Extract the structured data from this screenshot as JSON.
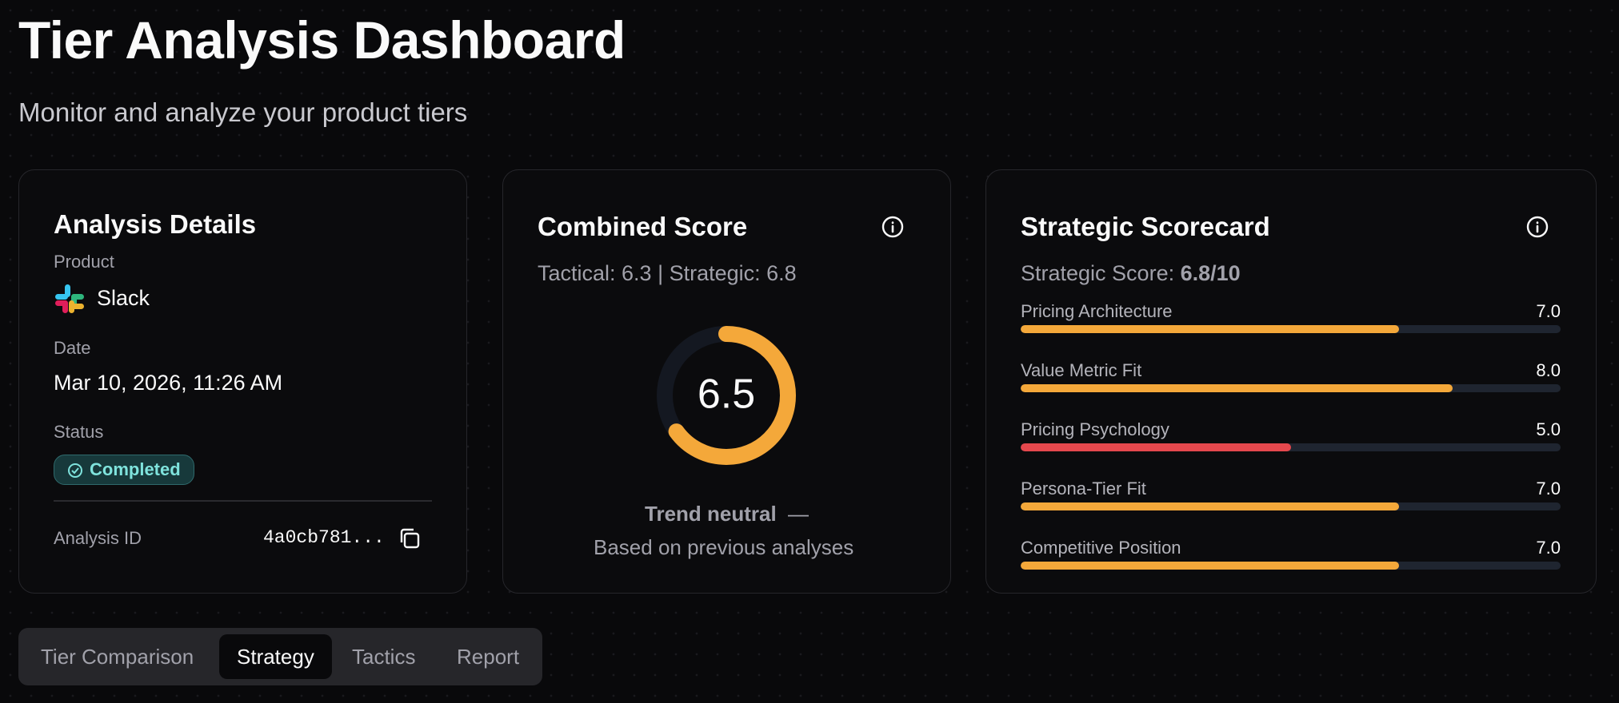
{
  "header": {
    "title": "Tier Analysis Dashboard",
    "subtitle": "Monitor and analyze your product tiers"
  },
  "details": {
    "title": "Analysis Details",
    "product_label": "Product",
    "product": "Slack",
    "date_label": "Date",
    "date": "Mar 10, 2026, 11:26 AM",
    "status_label": "Status",
    "status": "Completed",
    "id_label": "Analysis ID",
    "id": "4a0cb781..."
  },
  "combined": {
    "title": "Combined Score",
    "breakdown": "Tactical: 6.3 | Strategic: 6.8",
    "score": 6.5,
    "range": [
      0,
      10
    ],
    "color": "#f4a83a",
    "trend": "Trend neutral",
    "trend_icon": "—",
    "note": "Based on previous analyses"
  },
  "scorecard": {
    "title": "Strategic Scorecard",
    "score_label": "Strategic Score:",
    "score": "6.8/10",
    "range": [
      0,
      10
    ],
    "items": [
      {
        "name": "Pricing Architecture",
        "value": 7,
        "value_label": "7.0",
        "color": "#f4a83a"
      },
      {
        "name": "Value Metric Fit",
        "value": 8,
        "value_label": "8.0",
        "color": "#f4a83a"
      },
      {
        "name": "Pricing Psychology",
        "value": 5,
        "value_label": "5.0",
        "color": "#e5484d"
      },
      {
        "name": "Persona-Tier Fit",
        "value": 7,
        "value_label": "7.0",
        "color": "#f4a83a"
      },
      {
        "name": "Competitive Position",
        "value": 7,
        "value_label": "7.0",
        "color": "#f4a83a"
      }
    ]
  },
  "tabs": {
    "items": [
      "Tier Comparison",
      "Strategy",
      "Tactics",
      "Report"
    ],
    "active": 1
  }
}
